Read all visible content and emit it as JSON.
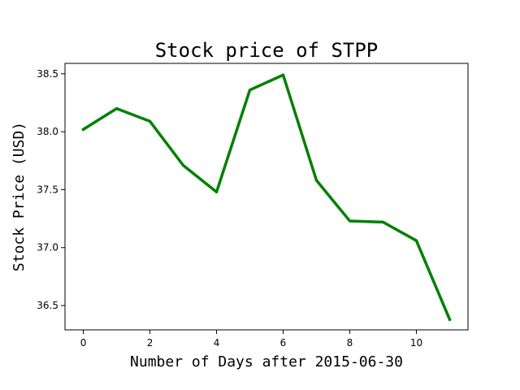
{
  "chart_data": {
    "type": "line",
    "title": "Stock price of STPP",
    "xlabel": "Number of Days after 2015-06-30",
    "ylabel": "Stock Price (USD)",
    "x": [
      0,
      1,
      2,
      3,
      4,
      5,
      6,
      7,
      8,
      9,
      10,
      11
    ],
    "series": [
      {
        "values": [
          38.02,
          38.2,
          38.09,
          37.71,
          37.48,
          38.36,
          38.49,
          37.58,
          37.23,
          37.22,
          37.06,
          36.38
        ],
        "color": "#008000"
      }
    ],
    "xlim": [
      -0.55,
      11.55
    ],
    "ylim": [
      36.29,
      38.59
    ],
    "xticks": [
      0,
      2,
      4,
      6,
      8,
      10
    ],
    "yticks": [
      36.5,
      37.0,
      37.5,
      38.0,
      38.5
    ],
    "xtick_labels": [
      "0",
      "2",
      "4",
      "6",
      "8",
      "10"
    ],
    "ytick_labels": [
      "36.5",
      "37.0",
      "37.5",
      "38.0",
      "38.5"
    ],
    "grid": false,
    "legend": "none"
  }
}
